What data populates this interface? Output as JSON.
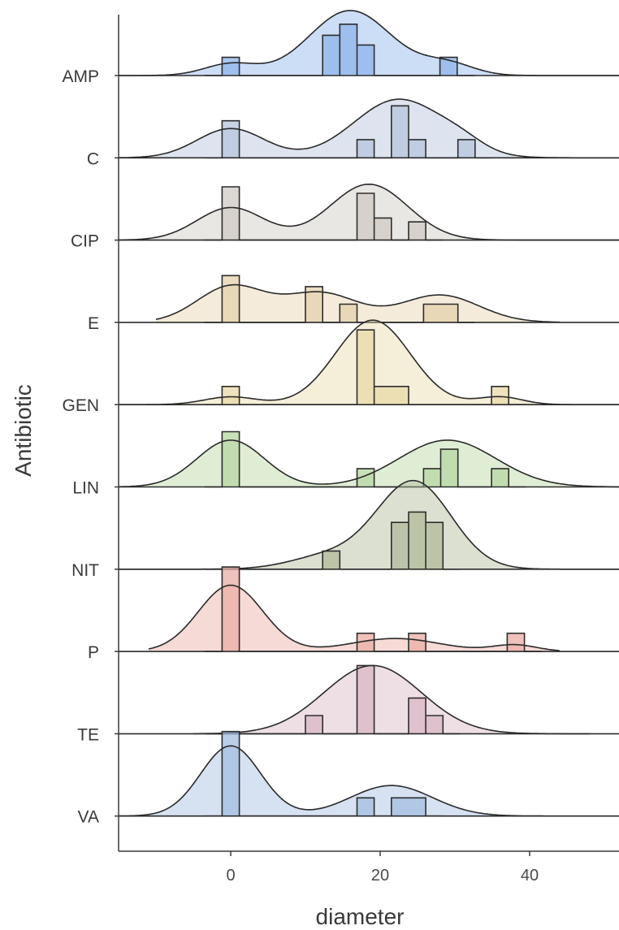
{
  "chart_data": {
    "type": "ridgeline",
    "xlabel": "diameter",
    "ylabel": "Antibiotic",
    "xlim": [
      -15,
      52
    ],
    "xticks": [
      0,
      20,
      40
    ],
    "grid": false,
    "histogram_binwidth": 2.3,
    "series": [
      {
        "name": "AMP",
        "color": "#8fb4ea",
        "x_range": [
          -15,
          52
        ],
        "density_peaks": [
          {
            "mu": 0,
            "sd": 3.5,
            "h": 0.18
          },
          {
            "mu": 16,
            "sd": 5.5,
            "h": 1.0
          },
          {
            "mu": 29,
            "sd": 3.5,
            "h": 0.18
          }
        ],
        "bins": [
          {
            "x0": -1.15,
            "x1": 1.15,
            "h": 0.28
          },
          {
            "x0": 12.3,
            "x1": 14.6,
            "h": 0.62
          },
          {
            "x0": 14.6,
            "x1": 16.9,
            "h": 0.79
          },
          {
            "x0": 16.9,
            "x1": 19.2,
            "h": 0.47
          },
          {
            "x0": 28.0,
            "x1": 30.3,
            "h": 0.28
          }
        ]
      },
      {
        "name": "C",
        "color": "#b6c4dc",
        "x_range": [
          -15,
          52
        ],
        "density_peaks": [
          {
            "mu": 0,
            "sd": 4.5,
            "h": 0.45
          },
          {
            "mu": 22.5,
            "sd": 6,
            "h": 0.9
          },
          {
            "mu": 31,
            "sd": 3,
            "h": 0.12
          }
        ],
        "bins": [
          {
            "x0": -1.15,
            "x1": 1.15,
            "h": 0.57
          },
          {
            "x0": 16.9,
            "x1": 19.2,
            "h": 0.28
          },
          {
            "x0": 21.5,
            "x1": 23.8,
            "h": 0.8
          },
          {
            "x0": 23.8,
            "x1": 26.1,
            "h": 0.28
          },
          {
            "x0": 30.4,
            "x1": 32.7,
            "h": 0.28
          }
        ]
      },
      {
        "name": "CIP",
        "color": "#cfc9c3",
        "x_range": [
          -15,
          52
        ],
        "density_peaks": [
          {
            "mu": 0,
            "sd": 4.5,
            "h": 0.5
          },
          {
            "mu": 18.5,
            "sd": 5.2,
            "h": 0.86
          }
        ],
        "bins": [
          {
            "x0": -1.15,
            "x1": 1.15,
            "h": 0.82
          },
          {
            "x0": 16.9,
            "x1": 19.2,
            "h": 0.72
          },
          {
            "x0": 19.2,
            "x1": 21.5,
            "h": 0.34
          },
          {
            "x0": 23.8,
            "x1": 26.1,
            "h": 0.28
          }
        ]
      },
      {
        "name": "E",
        "color": "#e6d2ac",
        "x_range": [
          -10,
          44
        ],
        "density_peaks": [
          {
            "mu": 0,
            "sd": 4.5,
            "h": 0.55
          },
          {
            "mu": 12,
            "sd": 5,
            "h": 0.45
          },
          {
            "mu": 28,
            "sd": 5.2,
            "h": 0.42
          }
        ],
        "bins": [
          {
            "x0": -1.15,
            "x1": 1.15,
            "h": 0.72
          },
          {
            "x0": 10.0,
            "x1": 12.3,
            "h": 0.55
          },
          {
            "x0": 14.6,
            "x1": 16.9,
            "h": 0.28
          },
          {
            "x0": 25.8,
            "x1": 30.4,
            "h": 0.28
          }
        ]
      },
      {
        "name": "GEN",
        "color": "#e8d9a8",
        "x_range": [
          -15,
          52
        ],
        "density_peaks": [
          {
            "mu": 0,
            "sd": 3.5,
            "h": 0.12
          },
          {
            "mu": 19,
            "sd": 5,
            "h": 1.3
          },
          {
            "mu": 36,
            "sd": 3,
            "h": 0.12
          }
        ],
        "bins": [
          {
            "x0": -1.15,
            "x1": 1.15,
            "h": 0.28
          },
          {
            "x0": 16.9,
            "x1": 19.2,
            "h": 1.15
          },
          {
            "x0": 19.2,
            "x1": 23.8,
            "h": 0.28
          },
          {
            "x0": 34.9,
            "x1": 37.2,
            "h": 0.28
          }
        ]
      },
      {
        "name": "LIN",
        "color": "#b7d7a2",
        "x_range": [
          -15,
          52
        ],
        "density_peaks": [
          {
            "mu": 0,
            "sd": 4.5,
            "h": 0.72
          },
          {
            "mu": 29,
            "sd": 6.5,
            "h": 0.72
          }
        ],
        "bins": [
          {
            "x0": -1.15,
            "x1": 1.15,
            "h": 0.85
          },
          {
            "x0": 16.9,
            "x1": 19.2,
            "h": 0.28
          },
          {
            "x0": 25.8,
            "x1": 28.1,
            "h": 0.28
          },
          {
            "x0": 28.1,
            "x1": 30.4,
            "h": 0.58
          },
          {
            "x0": 34.9,
            "x1": 37.2,
            "h": 0.28
          }
        ]
      },
      {
        "name": "NIT",
        "color": "#b2bb98",
        "x_range": [
          -15,
          52
        ],
        "density_peaks": [
          {
            "mu": 13,
            "sd": 5,
            "h": 0.2
          },
          {
            "mu": 24.5,
            "sd": 5,
            "h": 1.35
          }
        ],
        "bins": [
          {
            "x0": 12.3,
            "x1": 14.6,
            "h": 0.28
          },
          {
            "x0": 21.5,
            "x1": 23.8,
            "h": 0.72
          },
          {
            "x0": 23.8,
            "x1": 26.1,
            "h": 0.88
          },
          {
            "x0": 26.1,
            "x1": 28.4,
            "h": 0.72
          }
        ]
      },
      {
        "name": "P",
        "color": "#eaaea4",
        "x_range": [
          -11,
          44
        ],
        "density_peaks": [
          {
            "mu": 0,
            "sd": 4.3,
            "h": 1.02
          },
          {
            "mu": 22,
            "sd": 6,
            "h": 0.2
          },
          {
            "mu": 38,
            "sd": 3,
            "h": 0.1
          }
        ],
        "bins": [
          {
            "x0": -1.15,
            "x1": 1.15,
            "h": 1.3
          },
          {
            "x0": 16.9,
            "x1": 19.2,
            "h": 0.28
          },
          {
            "x0": 23.8,
            "x1": 26.1,
            "h": 0.28
          },
          {
            "x0": 37.0,
            "x1": 39.3,
            "h": 0.28
          }
        ]
      },
      {
        "name": "TE",
        "color": "#d9b7c6",
        "x_range": [
          -5,
          48
        ],
        "density_peaks": [
          {
            "mu": 19,
            "sd": 6.5,
            "h": 1.05
          }
        ],
        "bins": [
          {
            "x0": 10.0,
            "x1": 12.3,
            "h": 0.28
          },
          {
            "x0": 16.9,
            "x1": 19.2,
            "h": 1.05
          },
          {
            "x0": 23.8,
            "x1": 26.1,
            "h": 0.55
          },
          {
            "x0": 26.1,
            "x1": 28.4,
            "h": 0.28
          }
        ]
      },
      {
        "name": "VA",
        "color": "#a3bde0",
        "x_range": [
          -15,
          42
        ],
        "density_peaks": [
          {
            "mu": 0,
            "sd": 4,
            "h": 1.08
          },
          {
            "mu": 21.5,
            "sd": 5.5,
            "h": 0.47
          }
        ],
        "bins": [
          {
            "x0": -1.15,
            "x1": 1.15,
            "h": 1.3
          },
          {
            "x0": 16.9,
            "x1": 19.2,
            "h": 0.28
          },
          {
            "x0": 21.5,
            "x1": 26.1,
            "h": 0.28
          }
        ]
      }
    ]
  }
}
